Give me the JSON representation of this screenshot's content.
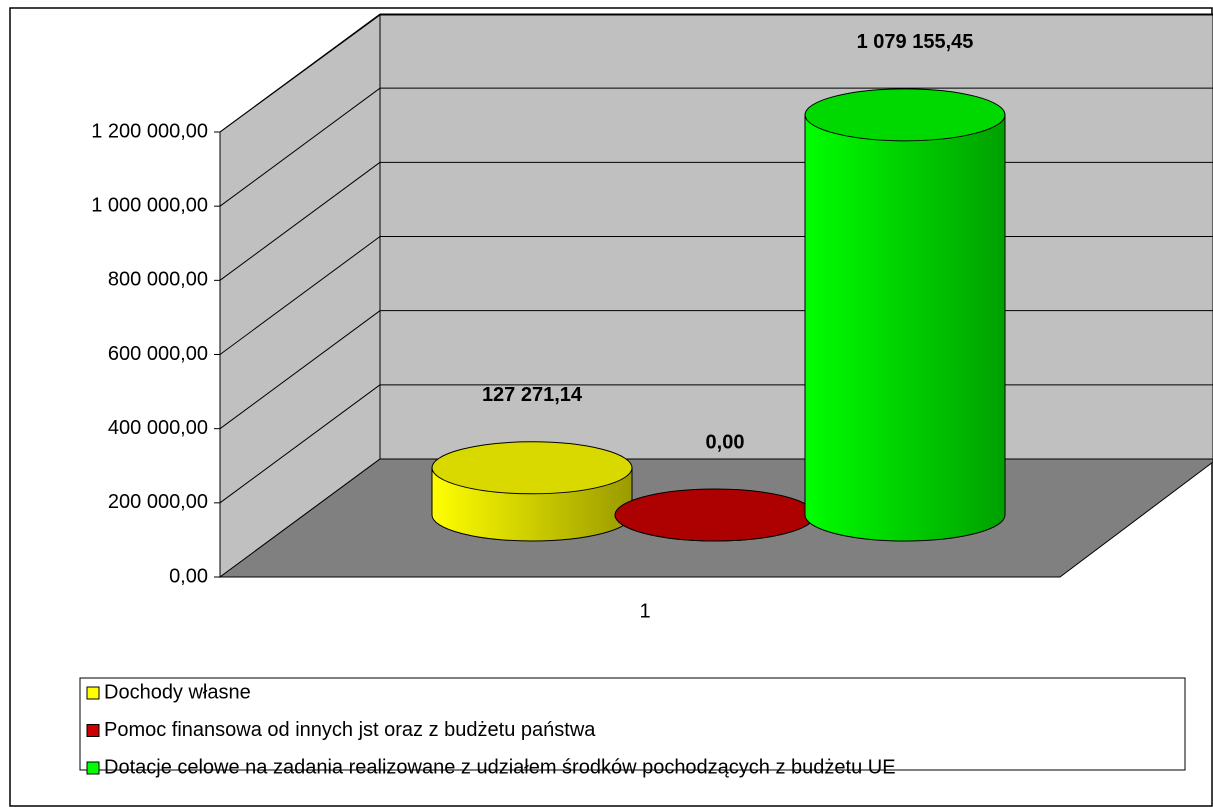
{
  "chart_data": {
    "type": "bar3d_cylinder",
    "categories": [
      "1"
    ],
    "series": [
      {
        "name": "Dochody własne",
        "color": "#ffff00",
        "values": [
          127271.14
        ],
        "value_labels": [
          "127 271,14"
        ]
      },
      {
        "name": "Pomoc finansowa od innych jst oraz z budżetu państwa",
        "color": "#cc0000",
        "values": [
          0
        ],
        "value_labels": [
          "0,00"
        ]
      },
      {
        "name": "Dotacje celowe na zadania realizowane z udziałem środków pochodzących z budżetu UE",
        "color": "#00ff00",
        "values": [
          1079155.45
        ],
        "value_labels": [
          "1 079 155,45"
        ]
      }
    ],
    "ylim": [
      0,
      1200000
    ],
    "yticks": [
      {
        "value": 0,
        "label": "0,00"
      },
      {
        "value": 200000,
        "label": "200 000,00"
      },
      {
        "value": 400000,
        "label": "400 000,00"
      },
      {
        "value": 600000,
        "label": "600 000,00"
      },
      {
        "value": 800000,
        "label": "800 000,00"
      },
      {
        "value": 1000000,
        "label": "1 000 000,00"
      },
      {
        "value": 1200000,
        "label": "1 200 000,00"
      }
    ],
    "grid": true,
    "legend": "bottom"
  }
}
